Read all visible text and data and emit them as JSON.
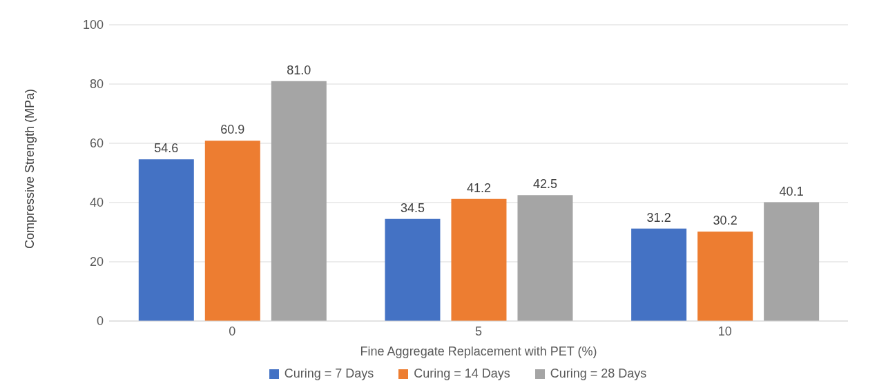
{
  "chart_data": {
    "type": "bar",
    "xlabel": "Fine Aggregate Replacement with PET (%)",
    "ylabel": "Compressive Strength (MPa)",
    "categories": [
      "0",
      "5",
      "10"
    ],
    "series": [
      {
        "name": "Curing = 7 Days",
        "color": "#4472c4",
        "values": [
          54.6,
          34.5,
          31.2
        ],
        "value_labels": [
          "54.6",
          "34.5",
          "31.2"
        ]
      },
      {
        "name": "Curing = 14 Days",
        "color": "#ed7d31",
        "values": [
          60.9,
          41.2,
          30.2
        ],
        "value_labels": [
          "60.9",
          "41.2",
          "30.2"
        ]
      },
      {
        "name": "Curing = 28 Days",
        "color": "#a5a5a5",
        "values": [
          81.0,
          42.5,
          40.1
        ],
        "value_labels": [
          "81.0",
          "42.5",
          "40.1"
        ]
      }
    ],
    "ylim": [
      0,
      100
    ],
    "yticks": [
      0,
      20,
      40,
      60,
      80,
      100
    ],
    "grid": "y",
    "legend": "bottom"
  }
}
